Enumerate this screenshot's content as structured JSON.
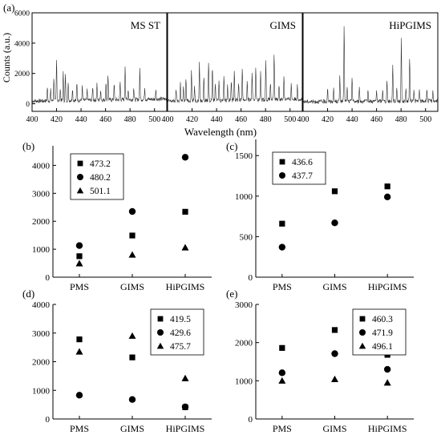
{
  "figure": {
    "ylabel_spectra": "Counts (a.u.)",
    "xlabel_spectra": "Wavelength (nm)"
  },
  "chart_data": [
    {
      "id": "a",
      "panel_label": "(a)",
      "type": "line",
      "xlabel": "Wavelength (nm)",
      "ylabel": "Counts (a.u.)",
      "ylim": [
        -500,
        6000
      ],
      "yticks": [
        0,
        2000,
        4000,
        6000
      ],
      "xticks": [
        400,
        420,
        440,
        460,
        480,
        500
      ],
      "subpanels": [
        {
          "name": "MS ST",
          "xlim": [
            400,
            510
          ],
          "peaks": [
            {
              "x": 412.5,
              "y": 900
            },
            {
              "x": 415.2,
              "y": 700
            },
            {
              "x": 417.8,
              "y": 1500
            },
            {
              "x": 420.0,
              "y": 2700
            },
            {
              "x": 423.0,
              "y": 800
            },
            {
              "x": 425.4,
              "y": 1900
            },
            {
              "x": 427.2,
              "y": 1700
            },
            {
              "x": 429.5,
              "y": 1100
            },
            {
              "x": 433.0,
              "y": 800
            },
            {
              "x": 436.6,
              "y": 1200
            },
            {
              "x": 441.0,
              "y": 900
            },
            {
              "x": 445.0,
              "y": 700
            },
            {
              "x": 449.5,
              "y": 900
            },
            {
              "x": 453.0,
              "y": 1100
            },
            {
              "x": 456.0,
              "y": 700
            },
            {
              "x": 460.3,
              "y": 1200
            },
            {
              "x": 462.0,
              "y": 1700
            },
            {
              "x": 467.0,
              "y": 1100
            },
            {
              "x": 471.9,
              "y": 1200
            },
            {
              "x": 476.0,
              "y": 2300
            },
            {
              "x": 478.5,
              "y": 700
            },
            {
              "x": 483.0,
              "y": 800
            },
            {
              "x": 488.0,
              "y": 2000
            },
            {
              "x": 492.0,
              "y": 800
            },
            {
              "x": 501.1,
              "y": 700
            }
          ]
        },
        {
          "name": "GIMS",
          "xlim": [
            400,
            510
          ],
          "peaks": [
            {
              "x": 407.0,
              "y": 800
            },
            {
              "x": 410.5,
              "y": 1200
            },
            {
              "x": 413.0,
              "y": 900
            },
            {
              "x": 415.0,
              "y": 1500
            },
            {
              "x": 419.5,
              "y": 2000
            },
            {
              "x": 422.0,
              "y": 1000
            },
            {
              "x": 426.0,
              "y": 2500
            },
            {
              "x": 429.6,
              "y": 1600
            },
            {
              "x": 433.5,
              "y": 2600
            },
            {
              "x": 436.6,
              "y": 2300
            },
            {
              "x": 439.0,
              "y": 1200
            },
            {
              "x": 442.0,
              "y": 1300
            },
            {
              "x": 446.0,
              "y": 1700
            },
            {
              "x": 449.0,
              "y": 1000
            },
            {
              "x": 452.0,
              "y": 1300
            },
            {
              "x": 454.5,
              "y": 2000
            },
            {
              "x": 458.0,
              "y": 1200
            },
            {
              "x": 461.0,
              "y": 2200
            },
            {
              "x": 465.0,
              "y": 1200
            },
            {
              "x": 469.0,
              "y": 1700
            },
            {
              "x": 472.0,
              "y": 2200
            },
            {
              "x": 476.0,
              "y": 1800
            },
            {
              "x": 480.2,
              "y": 2600
            },
            {
              "x": 484.0,
              "y": 1100
            },
            {
              "x": 487.0,
              "y": 3100
            },
            {
              "x": 491.0,
              "y": 1000
            },
            {
              "x": 495.0,
              "y": 1500
            },
            {
              "x": 501.0,
              "y": 1000
            },
            {
              "x": 506.0,
              "y": 900
            }
          ]
        },
        {
          "name": "HiPGIMS",
          "xlim": [
            400,
            510
          ],
          "peaks": [
            {
              "x": 420.0,
              "y": 900
            },
            {
              "x": 425.0,
              "y": 800
            },
            {
              "x": 430.0,
              "y": 1700
            },
            {
              "x": 433.5,
              "y": 5100
            },
            {
              "x": 436.0,
              "y": 900
            },
            {
              "x": 440.0,
              "y": 1700
            },
            {
              "x": 446.0,
              "y": 900
            },
            {
              "x": 453.0,
              "y": 800
            },
            {
              "x": 460.0,
              "y": 700
            },
            {
              "x": 465.0,
              "y": 800
            },
            {
              "x": 468.5,
              "y": 1300
            },
            {
              "x": 473.2,
              "y": 2500
            },
            {
              "x": 476.5,
              "y": 1000
            },
            {
              "x": 480.2,
              "y": 4200
            },
            {
              "x": 484.0,
              "y": 800
            },
            {
              "x": 487.0,
              "y": 2900
            },
            {
              "x": 490.5,
              "y": 800
            },
            {
              "x": 495.0,
              "y": 700
            },
            {
              "x": 501.1,
              "y": 800
            },
            {
              "x": 506.0,
              "y": 700
            }
          ]
        }
      ]
    },
    {
      "id": "b",
      "panel_label": "(b)",
      "type": "scatter",
      "categories": [
        "PMS",
        "GIMS",
        "HiPGIMS"
      ],
      "ylim": [
        0,
        4700
      ],
      "yticks": [
        0,
        1000,
        2000,
        3000,
        4000
      ],
      "legend_position": "top-left",
      "series": [
        {
          "name": "473.2",
          "marker": "square",
          "values": [
            750,
            1490,
            2340
          ]
        },
        {
          "name": "480.2",
          "marker": "circle",
          "values": [
            1130,
            2350,
            4290
          ]
        },
        {
          "name": "501.1",
          "marker": "triangle",
          "values": [
            490,
            800,
            1060
          ]
        }
      ]
    },
    {
      "id": "c",
      "panel_label": "(c)",
      "type": "scatter",
      "categories": [
        "PMS",
        "GIMS",
        "HiPGIMS"
      ],
      "ylim": [
        0,
        1700
      ],
      "yticks": [
        0,
        500,
        1000,
        1500
      ],
      "legend_position": "top-left",
      "series": [
        {
          "name": "436.6",
          "marker": "square",
          "values": [
            660,
            1060,
            1120
          ]
        },
        {
          "name": "437.7",
          "marker": "circle",
          "values": [
            370,
            670,
            990
          ]
        }
      ]
    },
    {
      "id": "d",
      "panel_label": "(d)",
      "type": "scatter",
      "categories": [
        "PMS",
        "GIMS",
        "HiPGIMS"
      ],
      "ylim": [
        0,
        4000
      ],
      "yticks": [
        0,
        1000,
        2000,
        3000,
        4000
      ],
      "legend_position": "top-right",
      "series": [
        {
          "name": "419.5",
          "marker": "square",
          "values": [
            2780,
            2150,
            410
          ]
        },
        {
          "name": "429.6",
          "marker": "circle",
          "values": [
            830,
            680,
            420
          ]
        },
        {
          "name": "475.7",
          "marker": "triangle",
          "values": [
            2350,
            2900,
            1420
          ]
        }
      ]
    },
    {
      "id": "e",
      "panel_label": "(e)",
      "type": "scatter",
      "categories": [
        "PMS",
        "GIMS",
        "HiPGIMS"
      ],
      "ylim": [
        0,
        3000
      ],
      "yticks": [
        0,
        1000,
        2000,
        3000
      ],
      "legend_position": "top-right",
      "series": [
        {
          "name": "460.3",
          "marker": "square",
          "values": [
            1860,
            2330,
            1680
          ]
        },
        {
          "name": "471.9",
          "marker": "circle",
          "values": [
            1210,
            1710,
            1300
          ]
        },
        {
          "name": "496.1",
          "marker": "triangle",
          "values": [
            1000,
            1040,
            950
          ]
        }
      ]
    }
  ]
}
